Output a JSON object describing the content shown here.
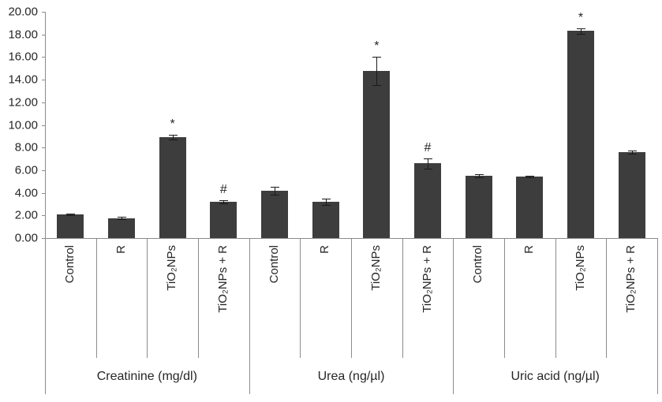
{
  "figure": {
    "background": "#ffffff"
  },
  "chart_data": {
    "type": "bar",
    "title": "",
    "xlabel": "",
    "ylabel": "",
    "ylim": [
      0,
      20
    ],
    "ytick_step": 2,
    "ytick_labels": [
      "0.00",
      "2.00",
      "4.00",
      "6.00",
      "8.00",
      "10.00",
      "12.00",
      "14.00",
      "16.00",
      "18.00",
      "20.00"
    ],
    "grid": false,
    "legend_position": "none",
    "bar_color": "#3d3d3d",
    "axis_color": "#8c8c8c",
    "error_bar_color": "#1a1a1a",
    "categories": [
      "Control",
      "R",
      "TiO₂NPs",
      "TiO₂NPs + R"
    ],
    "groups": [
      {
        "label": "Creatinine (mg/dl)",
        "values": [
          2.1,
          1.75,
          8.9,
          3.2
        ],
        "errors": [
          0.08,
          0.1,
          0.2,
          0.12
        ],
        "annotations": [
          "",
          "",
          "*",
          "#"
        ]
      },
      {
        "label": "Urea (ng/µl)",
        "values": [
          4.2,
          3.2,
          14.8,
          6.6
        ],
        "errors": [
          0.35,
          0.3,
          1.25,
          0.45
        ],
        "annotations": [
          "",
          "",
          "*",
          "#"
        ]
      },
      {
        "label": "Uric acid (ng/µl)",
        "values": [
          5.5,
          5.45,
          18.3,
          7.6
        ],
        "errors": [
          0.12,
          0.08,
          0.25,
          0.15
        ],
        "annotations": [
          "",
          "",
          "*",
          ""
        ]
      }
    ]
  }
}
